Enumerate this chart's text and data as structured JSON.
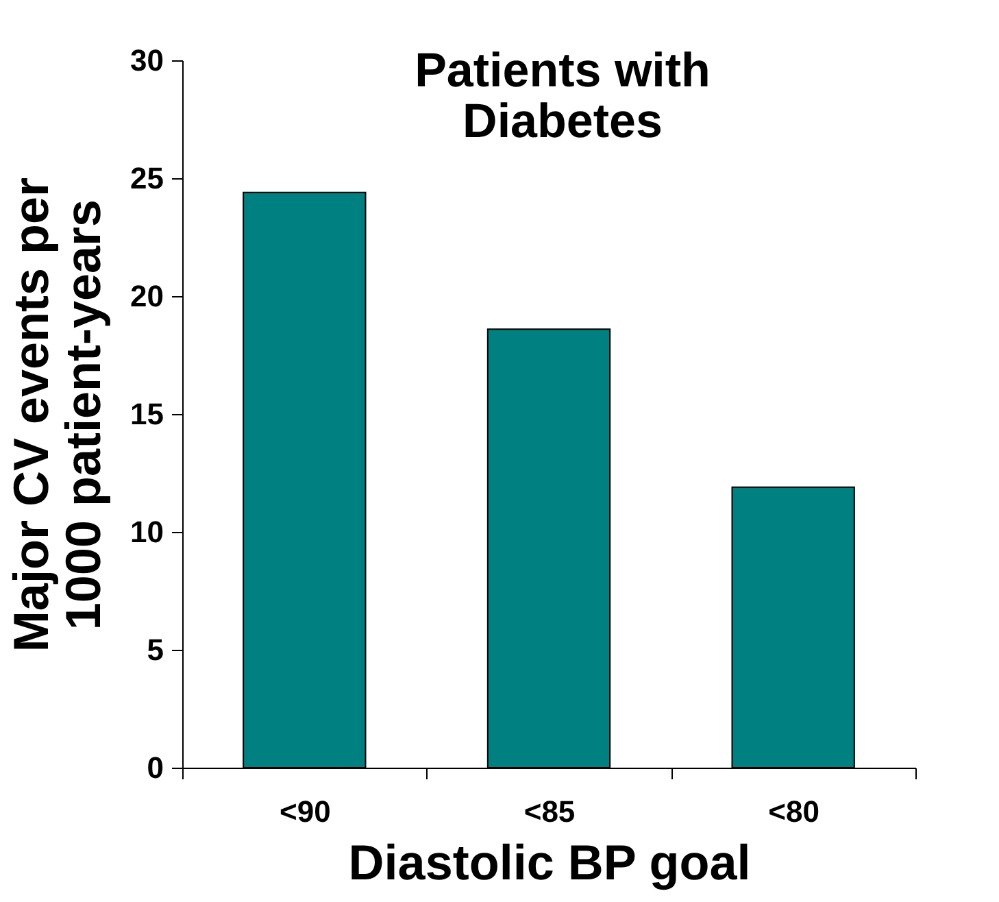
{
  "chart_data": {
    "type": "bar",
    "title": "Patients with\nDiabetes",
    "xlabel": "Diastolic BP goal",
    "ylabel": "Major CV events per\n1000 patient-years",
    "categories": [
      "<90",
      "<85",
      "<80"
    ],
    "values": [
      24.4,
      18.6,
      11.9
    ],
    "color": "#008080",
    "ylim": [
      0,
      30
    ],
    "yticks": [
      0,
      5,
      10,
      15,
      20,
      25,
      30
    ],
    "grid": false
  }
}
